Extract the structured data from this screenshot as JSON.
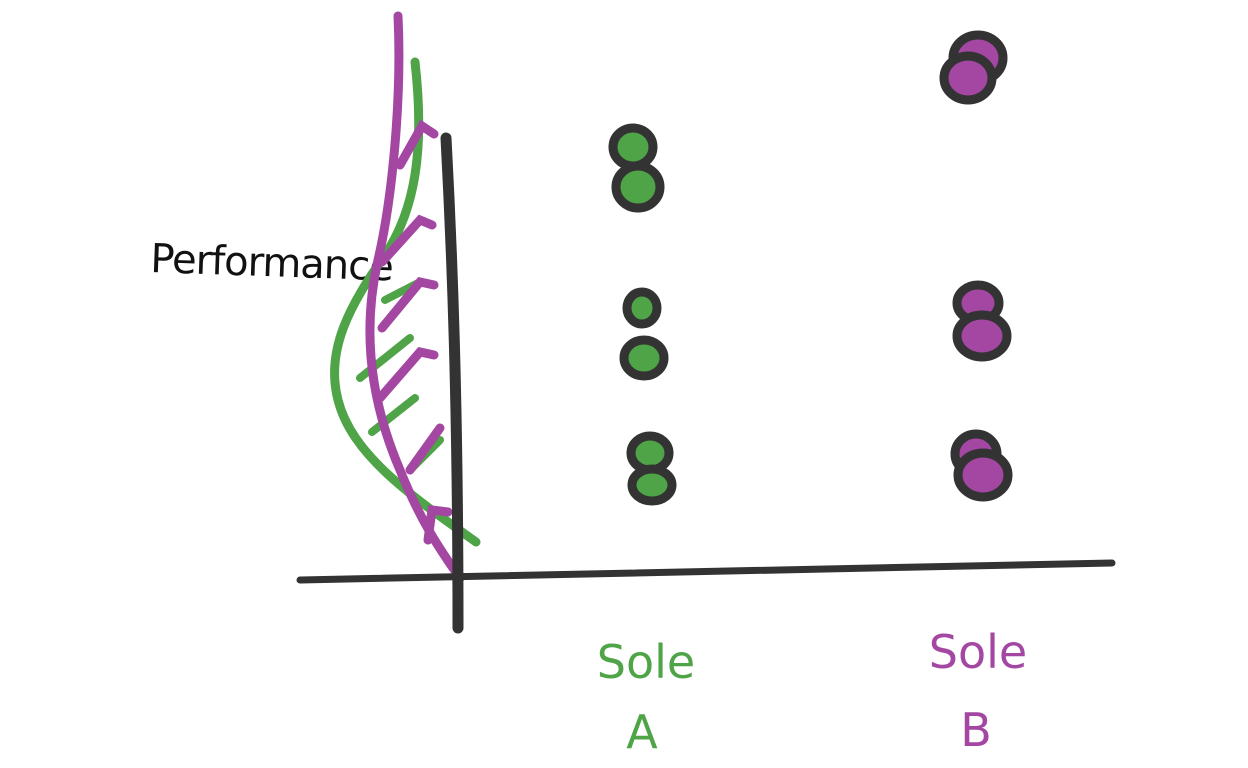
{
  "axis": {
    "y_label": "Performance"
  },
  "groups": [
    {
      "name": "Sole",
      "sub": "A",
      "color": "#4fa447",
      "point_count": 6
    },
    {
      "name": "Sole",
      "sub": "B",
      "color": "#a347a3",
      "point_count": 6
    }
  ],
  "colors": {
    "ink": "#333333",
    "group_a": "#4fa447",
    "group_b": "#a347a3"
  }
}
